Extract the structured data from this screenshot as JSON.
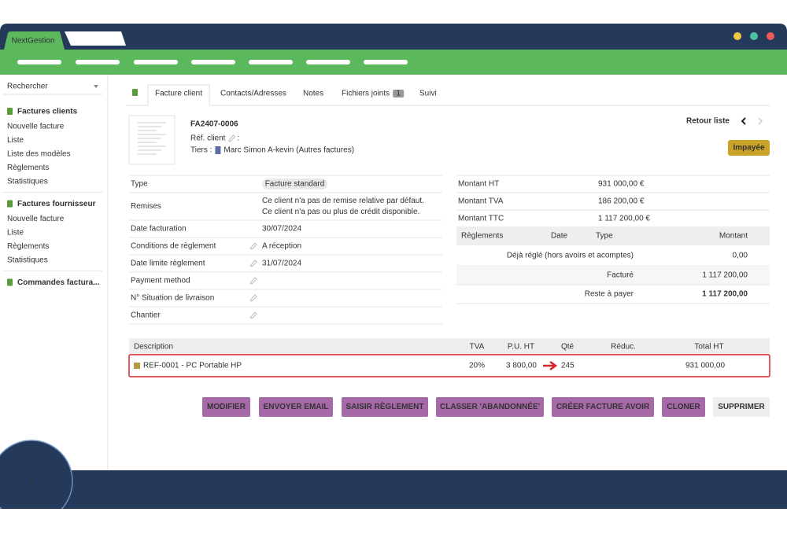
{
  "browser": {
    "tab": "NextGestion"
  },
  "sidebar": {
    "search": "Rechercher",
    "sections": [
      {
        "title": "Factures clients",
        "items": [
          "Nouvelle facture",
          "Liste",
          "Liste des modèles",
          "Règlements",
          "Statistiques"
        ]
      },
      {
        "title": "Factures fournisseur",
        "items": [
          "Nouvelle facture",
          "Liste",
          "Règlements",
          "Statistiques"
        ]
      },
      {
        "title": "Commandes factura...",
        "items": []
      }
    ]
  },
  "tabs": [
    {
      "label": "Facture client"
    },
    {
      "label": "Contacts/Adresses"
    },
    {
      "label": "Notes"
    },
    {
      "label": "Fichiers joints",
      "badge": "1"
    },
    {
      "label": "Suivi"
    }
  ],
  "header": {
    "ref": "FA2407-0006",
    "ref_client": "Réf. client",
    "ref_client_colon": ":",
    "tiers_label": "Tiers :",
    "tiers": "Marc Simon A-kevin (Autres factures)",
    "back": "Retour liste",
    "status": "Impayée"
  },
  "fields": [
    {
      "label": "Type",
      "value": "Facture standard"
    },
    {
      "label": "Remises",
      "value": [
        "Ce client n'a pas de remise relative par défaut.",
        "Ce client n'a pas ou plus de crédit disponible."
      ]
    },
    {
      "label": "Date facturation",
      "value": "30/07/2024"
    },
    {
      "label": "Conditions de règlement",
      "value": "A réception",
      "editable": true
    },
    {
      "label": "Date limite règlement",
      "value": "31/07/2024",
      "editable": true
    },
    {
      "label": "Payment method",
      "editable": true
    },
    {
      "label": "N° Situation de livraison",
      "editable": true
    },
    {
      "label": "Chantier",
      "editable": true
    }
  ],
  "totals": [
    {
      "label": "Montant HT",
      "value": "931 000,00 €"
    },
    {
      "label": "Montant TVA",
      "value": "186 200,00 €"
    },
    {
      "label": "Montant TTC",
      "value": "1 117 200,00 €"
    }
  ],
  "payments": {
    "columns": [
      "Règlements",
      "Date",
      "Type",
      "Montant"
    ],
    "rows": [
      {
        "label": "Déjà réglé (hors avoirs et acomptes)",
        "value": "0,00"
      },
      {
        "label": "Facturé",
        "value": "1 117 200,00"
      },
      {
        "label": "Reste à payer",
        "value": "1 117 200,00"
      }
    ]
  },
  "lines": {
    "columns": [
      "Description",
      "TVA",
      "P.U. HT",
      "Qté",
      "Réduc.",
      "Total HT"
    ],
    "rows": [
      {
        "description": "REF-0001 - PC Portable HP",
        "tva": "20%",
        "pu_ht": "3 800,00",
        "qty": "245",
        "total_ht": "931 000,00"
      }
    ]
  },
  "buttons": [
    "MODIFIER",
    "ENVOYER EMAIL",
    "SAISIR RÈGLEMENT",
    "CLASSER 'ABANDONNÉE'",
    "CRÉER FACTURE AVOIR",
    "CLONER",
    "SUPPRIMER"
  ],
  "step": "1"
}
